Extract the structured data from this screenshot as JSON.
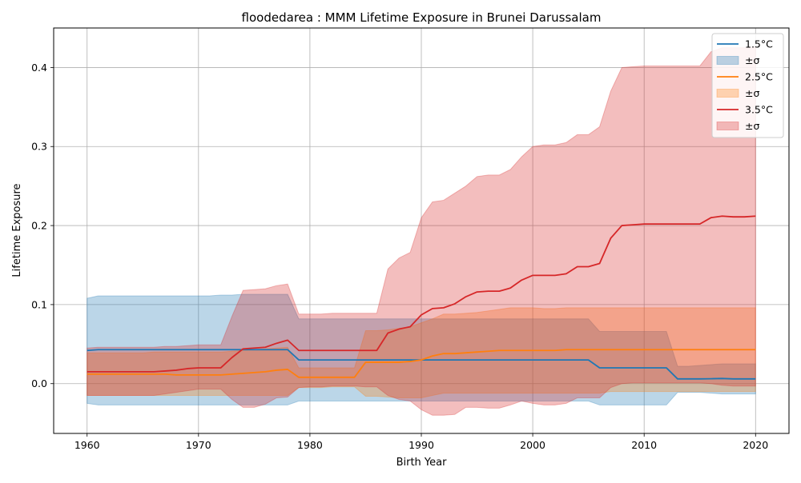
{
  "chart_data": {
    "type": "line",
    "title": "floodedarea : MMM Lifetime Exposure in Brunei Darussalam",
    "xlabel": "Birth Year",
    "ylabel": "Lifetime Exposure",
    "xlim": [
      1957,
      2023
    ],
    "ylim": [
      -0.063,
      0.45
    ],
    "xticks": [
      1960,
      1970,
      1980,
      1990,
      2000,
      2010,
      2020
    ],
    "yticks": [
      0.0,
      0.1,
      0.2,
      0.3,
      0.4
    ],
    "xtick_labels": [
      "1960",
      "1970",
      "1980",
      "1990",
      "2000",
      "2010",
      "2020"
    ],
    "ytick_labels": [
      "0.0",
      "0.1",
      "0.2",
      "0.3",
      "0.4"
    ],
    "grid": true,
    "legend_position": "top-right",
    "x": [
      1960,
      1961,
      1962,
      1963,
      1964,
      1965,
      1966,
      1967,
      1968,
      1969,
      1970,
      1971,
      1972,
      1973,
      1974,
      1975,
      1976,
      1977,
      1978,
      1979,
      1980,
      1981,
      1982,
      1983,
      1984,
      1985,
      1986,
      1987,
      1988,
      1989,
      1990,
      1991,
      1992,
      1993,
      1994,
      1995,
      1996,
      1997,
      1998,
      1999,
      2000,
      2001,
      2002,
      2003,
      2004,
      2005,
      2006,
      2007,
      2008,
      2009,
      2010,
      2011,
      2012,
      2013,
      2014,
      2015,
      2016,
      2017,
      2018,
      2019,
      2020
    ],
    "series": [
      {
        "name": "1.5°C",
        "band_label": "±σ",
        "color": "#1f77b4",
        "values": [
          0.042,
          0.043,
          0.043,
          0.043,
          0.043,
          0.043,
          0.043,
          0.043,
          0.043,
          0.043,
          0.043,
          0.043,
          0.043,
          0.043,
          0.043,
          0.043,
          0.043,
          0.043,
          0.043,
          0.03,
          0.03,
          0.03,
          0.03,
          0.03,
          0.03,
          0.03,
          0.03,
          0.03,
          0.03,
          0.03,
          0.03,
          0.03,
          0.03,
          0.03,
          0.03,
          0.03,
          0.03,
          0.03,
          0.03,
          0.03,
          0.03,
          0.03,
          0.03,
          0.03,
          0.03,
          0.03,
          0.02,
          0.02,
          0.02,
          0.02,
          0.02,
          0.02,
          0.02,
          0.006,
          0.006,
          0.006,
          0.0062,
          0.0065,
          0.006,
          0.006,
          0.006
        ],
        "lower": [
          -0.025,
          -0.027,
          -0.027,
          -0.027,
          -0.027,
          -0.027,
          -0.027,
          -0.027,
          -0.027,
          -0.027,
          -0.027,
          -0.027,
          -0.027,
          -0.027,
          -0.027,
          -0.027,
          -0.027,
          -0.027,
          -0.027,
          -0.022,
          -0.022,
          -0.022,
          -0.022,
          -0.022,
          -0.022,
          -0.022,
          -0.022,
          -0.022,
          -0.022,
          -0.022,
          -0.022,
          -0.022,
          -0.022,
          -0.022,
          -0.022,
          -0.022,
          -0.022,
          -0.022,
          -0.022,
          -0.022,
          -0.022,
          -0.022,
          -0.022,
          -0.022,
          -0.022,
          -0.022,
          -0.027,
          -0.027,
          -0.027,
          -0.027,
          -0.027,
          -0.027,
          -0.027,
          -0.011,
          -0.011,
          -0.011,
          -0.012,
          -0.013,
          -0.013,
          -0.013,
          -0.013
        ],
        "upper": [
          0.108,
          0.111,
          0.111,
          0.111,
          0.111,
          0.111,
          0.111,
          0.111,
          0.111,
          0.111,
          0.111,
          0.111,
          0.112,
          0.112,
          0.113,
          0.113,
          0.113,
          0.113,
          0.113,
          0.082,
          0.082,
          0.082,
          0.082,
          0.082,
          0.082,
          0.082,
          0.082,
          0.082,
          0.082,
          0.082,
          0.082,
          0.082,
          0.082,
          0.082,
          0.082,
          0.082,
          0.082,
          0.082,
          0.082,
          0.082,
          0.082,
          0.082,
          0.082,
          0.082,
          0.082,
          0.082,
          0.066,
          0.066,
          0.066,
          0.066,
          0.066,
          0.066,
          0.066,
          0.022,
          0.022,
          0.023,
          0.024,
          0.025,
          0.025,
          0.025,
          0.025
        ]
      },
      {
        "name": "2.5°C",
        "band_label": "±σ",
        "color": "#ff7f0e",
        "values": [
          0.012,
          0.012,
          0.012,
          0.012,
          0.012,
          0.012,
          0.012,
          0.012,
          0.011,
          0.011,
          0.011,
          0.011,
          0.011,
          0.012,
          0.013,
          0.014,
          0.015,
          0.017,
          0.018,
          0.008,
          0.008,
          0.008,
          0.008,
          0.008,
          0.008,
          0.027,
          0.027,
          0.027,
          0.027,
          0.028,
          0.03,
          0.035,
          0.038,
          0.038,
          0.039,
          0.04,
          0.041,
          0.042,
          0.042,
          0.042,
          0.042,
          0.042,
          0.042,
          0.043,
          0.043,
          0.043,
          0.043,
          0.043,
          0.043,
          0.043,
          0.043,
          0.043,
          0.043,
          0.043,
          0.043,
          0.043,
          0.043,
          0.043,
          0.043,
          0.043,
          0.043
        ],
        "lower": [
          -0.015,
          -0.015,
          -0.015,
          -0.015,
          -0.015,
          -0.015,
          -0.015,
          -0.015,
          -0.015,
          -0.015,
          -0.015,
          -0.015,
          -0.015,
          -0.015,
          -0.015,
          -0.015,
          -0.015,
          -0.015,
          -0.015,
          -0.005,
          -0.005,
          -0.005,
          -0.004,
          -0.004,
          -0.004,
          -0.016,
          -0.016,
          -0.017,
          -0.018,
          -0.018,
          -0.018,
          -0.015,
          -0.012,
          -0.012,
          -0.012,
          -0.012,
          -0.012,
          -0.012,
          -0.012,
          -0.012,
          -0.012,
          -0.012,
          -0.012,
          -0.012,
          -0.012,
          -0.012,
          -0.012,
          -0.01,
          -0.01,
          -0.01,
          -0.01,
          -0.01,
          -0.01,
          -0.01,
          -0.01,
          -0.01,
          -0.01,
          -0.01,
          -0.01,
          -0.01,
          -0.01
        ],
        "upper": [
          0.039,
          0.039,
          0.039,
          0.039,
          0.039,
          0.039,
          0.04,
          0.04,
          0.04,
          0.04,
          0.04,
          0.04,
          0.04,
          0.041,
          0.042,
          0.043,
          0.044,
          0.045,
          0.046,
          0.02,
          0.02,
          0.02,
          0.02,
          0.02,
          0.02,
          0.067,
          0.067,
          0.068,
          0.07,
          0.072,
          0.077,
          0.082,
          0.088,
          0.088,
          0.089,
          0.09,
          0.092,
          0.094,
          0.096,
          0.096,
          0.096,
          0.095,
          0.095,
          0.096,
          0.096,
          0.096,
          0.096,
          0.096,
          0.096,
          0.096,
          0.096,
          0.096,
          0.096,
          0.096,
          0.096,
          0.096,
          0.096,
          0.096,
          0.096,
          0.096,
          0.096
        ]
      },
      {
        "name": "3.5°C",
        "band_label": "±σ",
        "color": "#d62728",
        "values": [
          0.015,
          0.015,
          0.015,
          0.015,
          0.015,
          0.015,
          0.015,
          0.016,
          0.017,
          0.019,
          0.02,
          0.02,
          0.02,
          0.033,
          0.044,
          0.045,
          0.046,
          0.051,
          0.055,
          0.042,
          0.042,
          0.042,
          0.042,
          0.042,
          0.042,
          0.042,
          0.042,
          0.064,
          0.069,
          0.072,
          0.087,
          0.095,
          0.096,
          0.101,
          0.11,
          0.116,
          0.117,
          0.117,
          0.121,
          0.131,
          0.137,
          0.137,
          0.137,
          0.139,
          0.148,
          0.148,
          0.152,
          0.184,
          0.2,
          0.201,
          0.202,
          0.202,
          0.202,
          0.202,
          0.202,
          0.202,
          0.21,
          0.212,
          0.211,
          0.211,
          0.212
        ],
        "lower": [
          -0.015,
          -0.015,
          -0.015,
          -0.015,
          -0.015,
          -0.015,
          -0.015,
          -0.013,
          -0.011,
          -0.009,
          -0.007,
          -0.007,
          -0.007,
          -0.02,
          -0.03,
          -0.03,
          -0.026,
          -0.018,
          -0.017,
          -0.005,
          -0.004,
          -0.004,
          -0.003,
          -0.003,
          -0.003,
          -0.004,
          -0.004,
          -0.015,
          -0.02,
          -0.022,
          -0.033,
          -0.04,
          -0.04,
          -0.039,
          -0.03,
          -0.03,
          -0.031,
          -0.031,
          -0.027,
          -0.022,
          -0.025,
          -0.027,
          -0.027,
          -0.025,
          -0.018,
          -0.018,
          -0.018,
          -0.005,
          0.0,
          0.001,
          0.001,
          0.001,
          0.001,
          0.001,
          0.001,
          0.001,
          0.0,
          -0.002,
          -0.003,
          -0.003,
          -0.003
        ],
        "upper": [
          0.045,
          0.046,
          0.046,
          0.046,
          0.046,
          0.046,
          0.046,
          0.047,
          0.047,
          0.048,
          0.049,
          0.049,
          0.049,
          0.085,
          0.118,
          0.119,
          0.12,
          0.124,
          0.126,
          0.088,
          0.088,
          0.088,
          0.089,
          0.089,
          0.089,
          0.089,
          0.089,
          0.145,
          0.159,
          0.166,
          0.21,
          0.23,
          0.232,
          0.241,
          0.25,
          0.262,
          0.264,
          0.264,
          0.271,
          0.287,
          0.3,
          0.302,
          0.302,
          0.305,
          0.315,
          0.315,
          0.325,
          0.37,
          0.4,
          0.401,
          0.402,
          0.402,
          0.402,
          0.402,
          0.402,
          0.402,
          0.42,
          0.425,
          0.425,
          0.425,
          0.426
        ]
      }
    ]
  }
}
